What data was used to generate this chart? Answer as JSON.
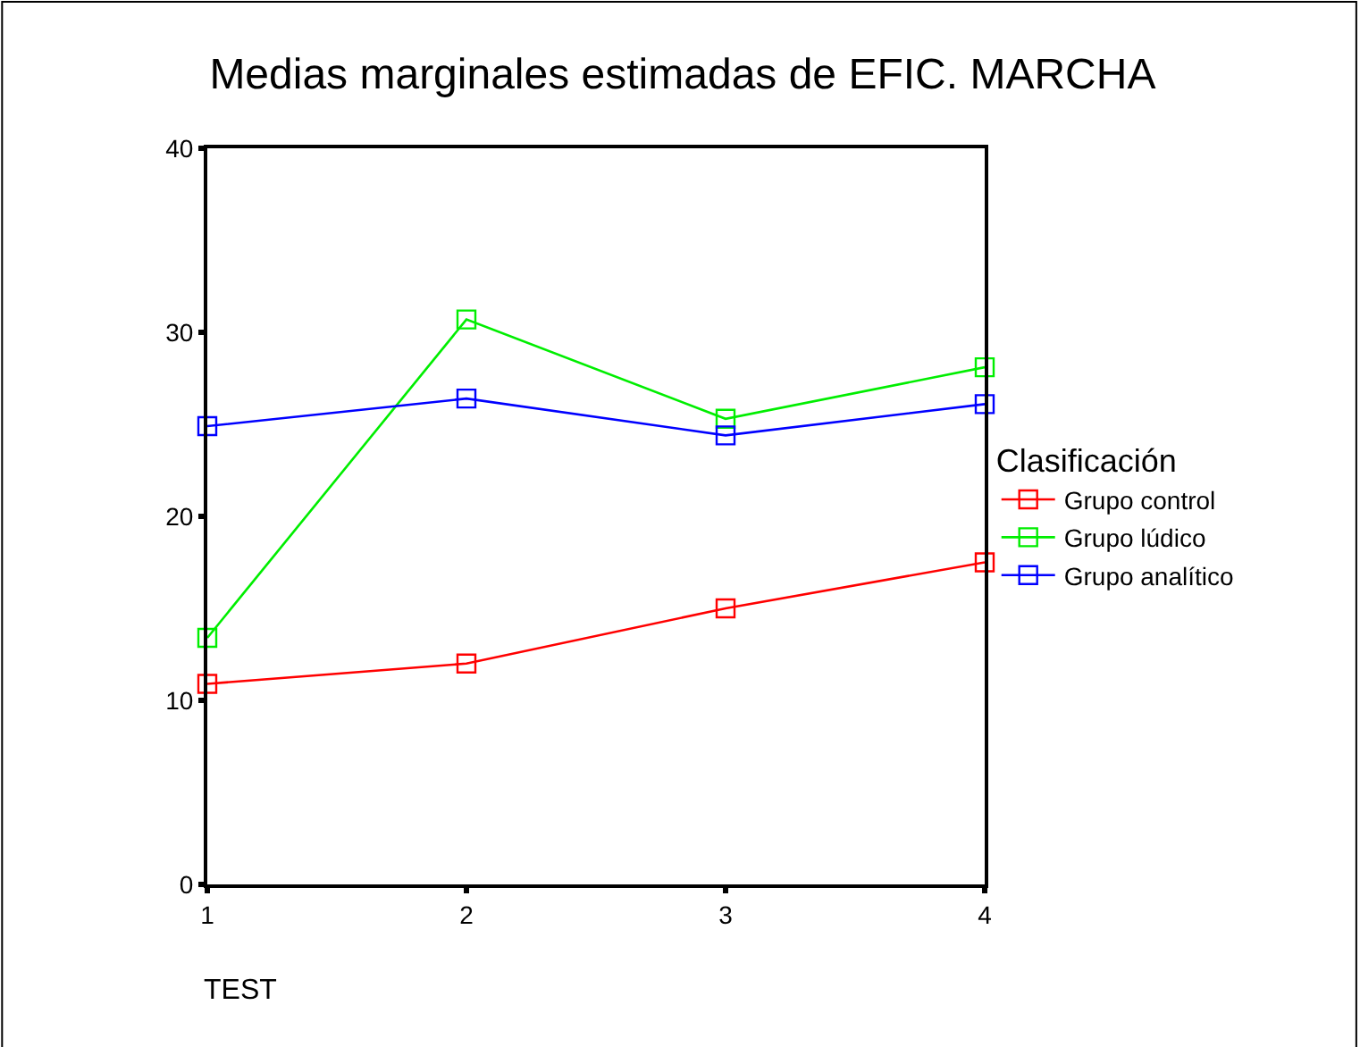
{
  "chart_data": {
    "type": "line",
    "title": "Medias marginales estimadas de EFIC. MARCHA",
    "xlabel": "TEST",
    "legend_title": "Clasificación",
    "x": [
      1,
      2,
      3,
      4
    ],
    "series": [
      {
        "name": "Grupo control",
        "color": "#ff0000",
        "values": [
          10.9,
          12.0,
          15.0,
          17.5
        ]
      },
      {
        "name": "Grupo lúdico",
        "color": "#00ee00",
        "values": [
          13.4,
          30.7,
          25.3,
          28.1
        ]
      },
      {
        "name": "Grupo analítico",
        "color": "#0000ff",
        "values": [
          24.9,
          26.4,
          24.4,
          26.1
        ]
      }
    ],
    "xlim": [
      1,
      4
    ],
    "xticks": [
      1,
      2,
      3,
      4
    ],
    "ylim": [
      0,
      40
    ],
    "yticks": [
      0,
      10,
      20,
      30,
      40
    ],
    "legend": "right",
    "marker": "square",
    "line_style": "solid"
  }
}
